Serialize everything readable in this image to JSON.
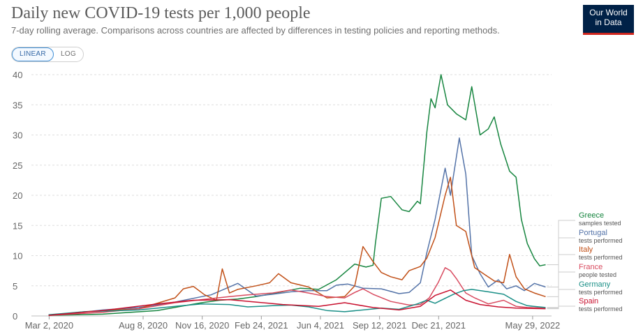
{
  "header": {
    "title": "Daily new COVID-19 tests per 1,000 people",
    "subtitle": "7-day rolling average. Comparisons across countries are affected by differences in testing policies and reporting methods.",
    "logo_line1": "Our World",
    "logo_line2": "in Data"
  },
  "controls": {
    "linear_label": "LINEAR",
    "log_label": "LOG",
    "active": "LINEAR"
  },
  "chart_data": {
    "type": "line",
    "title": "Daily new COVID-19 tests per 1,000 people",
    "subtitle": "7-day rolling average. Comparisons across countries are affected by differences in testing policies and reporting methods.",
    "x_ticks": [
      "Mar 2, 2020",
      "Aug 8, 2020",
      "Nov 16, 2020",
      "Feb 24, 2021",
      "Jun 4, 2021",
      "Sep 12, 2021",
      "Dec 21, 2021",
      "May 29, 2022"
    ],
    "x_tick_values": [
      "2020-03-02",
      "2020-08-08",
      "2020-11-16",
      "2021-02-24",
      "2021-06-04",
      "2021-09-12",
      "2021-12-21",
      "2022-05-29"
    ],
    "xlim": [
      "2020-02-01",
      "2022-06-30"
    ],
    "ylim": [
      0,
      40
    ],
    "y_ticks": [
      0,
      5,
      10,
      15,
      20,
      25,
      30,
      35,
      40
    ],
    "grid": "horizontal dashed",
    "legend_position": "right, line end labels",
    "series": [
      {
        "name": "Greece",
        "unit_note": "samples tested",
        "color": "#16853f",
        "points": [
          [
            "2020-03-01",
            0.1
          ],
          [
            "2020-06-01",
            0.3
          ],
          [
            "2020-09-01",
            0.9
          ],
          [
            "2020-11-15",
            2.2
          ],
          [
            "2020-12-15",
            2.6
          ],
          [
            "2021-01-15",
            2.8
          ],
          [
            "2021-02-15",
            3.2
          ],
          [
            "2021-03-15",
            3.7
          ],
          [
            "2021-04-10",
            4.2
          ],
          [
            "2021-05-01",
            4.6
          ],
          [
            "2021-06-01",
            4.4
          ],
          [
            "2021-07-01",
            6.0
          ],
          [
            "2021-08-01",
            8.6
          ],
          [
            "2021-08-20",
            8.1
          ],
          [
            "2021-09-01",
            8.4
          ],
          [
            "2021-09-05",
            12.0
          ],
          [
            "2021-09-15",
            19.5
          ],
          [
            "2021-10-01",
            19.8
          ],
          [
            "2021-10-20",
            17.6
          ],
          [
            "2021-11-01",
            17.3
          ],
          [
            "2021-11-15",
            19.0
          ],
          [
            "2021-11-20",
            18.6
          ],
          [
            "2021-12-01",
            30.5
          ],
          [
            "2021-12-08",
            36.0
          ],
          [
            "2021-12-15",
            34.5
          ],
          [
            "2021-12-25",
            40.0
          ],
          [
            "2022-01-05",
            35.0
          ],
          [
            "2022-01-20",
            33.5
          ],
          [
            "2022-02-05",
            32.5
          ],
          [
            "2022-02-15",
            38.0
          ],
          [
            "2022-03-01",
            30.0
          ],
          [
            "2022-03-15",
            31.0
          ],
          [
            "2022-03-25",
            33.0
          ],
          [
            "2022-04-05",
            28.5
          ],
          [
            "2022-04-20",
            24.0
          ],
          [
            "2022-05-01",
            23.0
          ],
          [
            "2022-05-10",
            16.0
          ],
          [
            "2022-05-20",
            12.0
          ],
          [
            "2022-06-01",
            9.5
          ],
          [
            "2022-06-10",
            8.3
          ],
          [
            "2022-06-20",
            8.5
          ]
        ]
      },
      {
        "name": "Portugal",
        "unit_note": "tests performed",
        "color": "#5473a8",
        "points": [
          [
            "2020-03-01",
            0.1
          ],
          [
            "2020-04-15",
            0.5
          ],
          [
            "2020-06-01",
            1.0
          ],
          [
            "2020-08-01",
            1.4
          ],
          [
            "2020-10-01",
            2.3
          ],
          [
            "2020-11-15",
            3.2
          ],
          [
            "2020-12-01",
            3.5
          ],
          [
            "2021-01-15",
            5.4
          ],
          [
            "2021-02-15",
            3.3
          ],
          [
            "2021-03-15",
            3.6
          ],
          [
            "2021-04-15",
            4.0
          ],
          [
            "2021-05-15",
            4.2
          ],
          [
            "2021-06-15",
            4.2
          ],
          [
            "2021-07-01",
            5.1
          ],
          [
            "2021-07-20",
            5.3
          ],
          [
            "2021-08-15",
            4.6
          ],
          [
            "2021-09-15",
            4.5
          ],
          [
            "2021-10-15",
            3.7
          ],
          [
            "2021-11-01",
            3.9
          ],
          [
            "2021-11-20",
            5.5
          ],
          [
            "2021-12-01",
            10.5
          ],
          [
            "2021-12-15",
            16.0
          ],
          [
            "2022-01-01",
            24.5
          ],
          [
            "2022-01-10",
            20.0
          ],
          [
            "2022-01-25",
            29.5
          ],
          [
            "2022-02-05",
            23.5
          ],
          [
            "2022-02-15",
            10.0
          ],
          [
            "2022-03-01",
            7.0
          ],
          [
            "2022-03-15",
            4.8
          ],
          [
            "2022-04-01",
            6.0
          ],
          [
            "2022-04-15",
            4.5
          ],
          [
            "2022-05-01",
            5.0
          ],
          [
            "2022-05-15",
            4.2
          ],
          [
            "2022-06-01",
            5.4
          ],
          [
            "2022-06-20",
            4.8
          ]
        ]
      },
      {
        "name": "Italy",
        "unit_note": "tests performed",
        "color": "#c15018",
        "points": [
          [
            "2020-03-01",
            0.1
          ],
          [
            "2020-05-01",
            0.7
          ],
          [
            "2020-08-01",
            1.2
          ],
          [
            "2020-10-01",
            3.0
          ],
          [
            "2020-10-15",
            4.5
          ],
          [
            "2020-11-01",
            4.9
          ],
          [
            "2020-11-20",
            3.5
          ],
          [
            "2020-12-10",
            2.6
          ],
          [
            "2020-12-20",
            7.8
          ],
          [
            "2021-01-01",
            3.8
          ],
          [
            "2021-01-15",
            4.4
          ],
          [
            "2021-02-15",
            5.0
          ],
          [
            "2021-03-10",
            5.5
          ],
          [
            "2021-03-25",
            7.0
          ],
          [
            "2021-04-15",
            5.5
          ],
          [
            "2021-05-15",
            4.8
          ],
          [
            "2021-06-15",
            3.0
          ],
          [
            "2021-07-15",
            3.2
          ],
          [
            "2021-08-01",
            5.0
          ],
          [
            "2021-08-15",
            11.5
          ],
          [
            "2021-09-01",
            9.0
          ],
          [
            "2021-09-15",
            7.2
          ],
          [
            "2021-10-01",
            6.5
          ],
          [
            "2021-10-20",
            6.0
          ],
          [
            "2021-11-01",
            7.5
          ],
          [
            "2021-11-20",
            8.2
          ],
          [
            "2021-12-01",
            9.6
          ],
          [
            "2021-12-15",
            13.0
          ],
          [
            "2022-01-01",
            20.0
          ],
          [
            "2022-01-10",
            23.0
          ],
          [
            "2022-01-20",
            15.0
          ],
          [
            "2022-02-05",
            14.0
          ],
          [
            "2022-02-20",
            8.0
          ],
          [
            "2022-03-10",
            6.8
          ],
          [
            "2022-03-25",
            5.8
          ],
          [
            "2022-04-10",
            5.5
          ],
          [
            "2022-04-20",
            10.2
          ],
          [
            "2022-05-01",
            6.5
          ],
          [
            "2022-05-15",
            4.5
          ],
          [
            "2022-06-01",
            3.8
          ],
          [
            "2022-06-20",
            3.2
          ]
        ]
      },
      {
        "name": "France",
        "unit_note": "people tested",
        "color": "#d8495e",
        "points": [
          [
            "2020-03-01",
            0.1
          ],
          [
            "2020-06-01",
            0.6
          ],
          [
            "2020-08-01",
            1.2
          ],
          [
            "2020-10-01",
            2.2
          ],
          [
            "2020-11-15",
            2.7
          ],
          [
            "2021-01-01",
            3.2
          ],
          [
            "2021-02-01",
            3.5
          ],
          [
            "2021-03-15",
            3.8
          ],
          [
            "2021-04-15",
            4.3
          ],
          [
            "2021-05-15",
            3.8
          ],
          [
            "2021-06-15",
            3.2
          ],
          [
            "2021-07-15",
            3.0
          ],
          [
            "2021-08-01",
            3.9
          ],
          [
            "2021-08-15",
            4.5
          ],
          [
            "2021-09-01",
            3.6
          ],
          [
            "2021-10-01",
            2.4
          ],
          [
            "2021-11-01",
            1.8
          ],
          [
            "2021-11-20",
            1.9
          ],
          [
            "2021-12-05",
            3.0
          ],
          [
            "2021-12-20",
            5.5
          ],
          [
            "2022-01-01",
            8.0
          ],
          [
            "2022-01-10",
            7.5
          ],
          [
            "2022-01-20",
            6.2
          ],
          [
            "2022-02-05",
            3.8
          ],
          [
            "2022-02-20",
            3.0
          ],
          [
            "2022-03-15",
            2.0
          ],
          [
            "2022-04-10",
            2.6
          ],
          [
            "2022-05-01",
            1.6
          ],
          [
            "2022-05-20",
            1.4
          ],
          [
            "2022-06-20",
            1.3
          ]
        ]
      },
      {
        "name": "Germany",
        "unit_note": "tests performed",
        "color": "#1a8f87",
        "points": [
          [
            "2020-03-01",
            0.2
          ],
          [
            "2020-05-01",
            0.7
          ],
          [
            "2020-08-01",
            1.0
          ],
          [
            "2020-10-01",
            1.6
          ],
          [
            "2020-11-15",
            2.0
          ],
          [
            "2021-01-01",
            1.9
          ],
          [
            "2021-02-01",
            1.5
          ],
          [
            "2021-03-15",
            1.7
          ],
          [
            "2021-04-15",
            1.8
          ],
          [
            "2021-05-15",
            1.5
          ],
          [
            "2021-06-15",
            0.9
          ],
          [
            "2021-07-15",
            0.7
          ],
          [
            "2021-08-15",
            1.0
          ],
          [
            "2021-09-15",
            1.3
          ],
          [
            "2021-10-15",
            1.1
          ],
          [
            "2021-11-15",
            2.0
          ],
          [
            "2021-12-01",
            2.6
          ],
          [
            "2021-12-15",
            2.1
          ],
          [
            "2022-01-15",
            3.6
          ],
          [
            "2022-02-01",
            4.2
          ],
          [
            "2022-02-15",
            4.4
          ],
          [
            "2022-03-15",
            4.0
          ],
          [
            "2022-04-10",
            3.6
          ],
          [
            "2022-05-01",
            2.4
          ],
          [
            "2022-05-20",
            1.7
          ],
          [
            "2022-06-20",
            1.4
          ]
        ]
      },
      {
        "name": "Spain",
        "unit_note": "tests performed",
        "color": "#c8102e",
        "points": [
          [
            "2020-03-01",
            0.1
          ],
          [
            "2020-06-01",
            0.9
          ],
          [
            "2020-09-01",
            2.0
          ],
          [
            "2020-11-01",
            2.6
          ],
          [
            "2021-01-01",
            2.7
          ],
          [
            "2021-02-15",
            2.3
          ],
          [
            "2021-04-01",
            1.9
          ],
          [
            "2021-06-01",
            1.6
          ],
          [
            "2021-07-15",
            2.2
          ],
          [
            "2021-09-01",
            1.4
          ],
          [
            "2021-10-15",
            1.0
          ],
          [
            "2021-11-20",
            1.6
          ],
          [
            "2021-12-15",
            3.4
          ],
          [
            "2022-01-10",
            4.3
          ],
          [
            "2022-02-05",
            2.6
          ],
          [
            "2022-03-01",
            1.9
          ],
          [
            "2022-04-01",
            1.5
          ],
          [
            "2022-05-01",
            1.3
          ],
          [
            "2022-06-20",
            1.2
          ]
        ]
      }
    ]
  }
}
